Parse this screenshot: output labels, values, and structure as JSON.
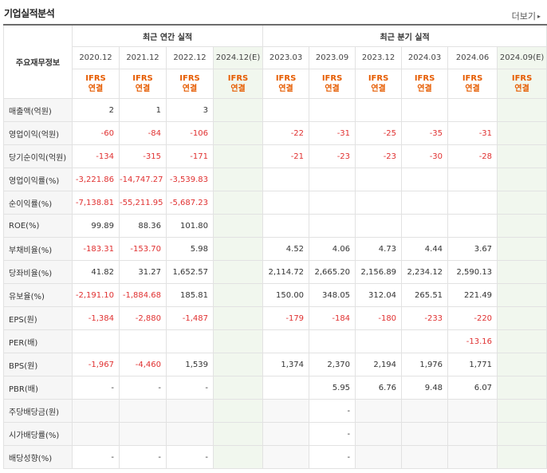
{
  "section_title": "기업실적분석",
  "more_label": "더보기",
  "header": {
    "corner_label": "주요재무정보",
    "annual_group": "최근 연간 실적",
    "quarterly_group": "최근 분기 실적",
    "periods": [
      "2020.12",
      "2021.12",
      "2022.12",
      "2024.12(E)",
      "2023.03",
      "2023.09",
      "2023.12",
      "2024.03",
      "2024.06",
      "2024.09(E)"
    ],
    "ifrs_line1": "IFRS",
    "ifrs_line2": "연결"
  },
  "rows": [
    {
      "label": "매출액(억원)",
      "values": [
        "2",
        "1",
        "3",
        "",
        "",
        "",
        "",
        "",
        "",
        ""
      ]
    },
    {
      "label": "영업이익(억원)",
      "values": [
        "-60",
        "-84",
        "-106",
        "",
        "-22",
        "-31",
        "-25",
        "-35",
        "-31",
        ""
      ]
    },
    {
      "label": "당기순이익(억원)",
      "values": [
        "-134",
        "-315",
        "-171",
        "",
        "-21",
        "-23",
        "-23",
        "-30",
        "-28",
        ""
      ]
    },
    {
      "label": "영업이익률(%)",
      "values": [
        "-3,221.86",
        "-14,747.27",
        "-3,539.83",
        "",
        "",
        "",
        "",
        "",
        "",
        ""
      ]
    },
    {
      "label": "순이익률(%)",
      "values": [
        "-7,138.81",
        "-55,211.95",
        "-5,687.23",
        "",
        "",
        "",
        "",
        "",
        "",
        ""
      ]
    },
    {
      "label": "ROE(%)",
      "values": [
        "99.89",
        "88.36",
        "101.80",
        "",
        "",
        "",
        "",
        "",
        "",
        ""
      ]
    },
    {
      "label": "부채비율(%)",
      "values": [
        "-183.31",
        "-153.70",
        "5.98",
        "",
        "4.52",
        "4.06",
        "4.73",
        "4.44",
        "3.67",
        ""
      ]
    },
    {
      "label": "당좌비율(%)",
      "values": [
        "41.82",
        "31.27",
        "1,652.57",
        "",
        "2,114.72",
        "2,665.20",
        "2,156.89",
        "2,234.12",
        "2,590.13",
        ""
      ]
    },
    {
      "label": "유보율(%)",
      "values": [
        "-2,191.10",
        "-1,884.68",
        "185.81",
        "",
        "150.00",
        "348.05",
        "312.04",
        "265.51",
        "221.49",
        ""
      ]
    },
    {
      "label": "EPS(원)",
      "values": [
        "-1,384",
        "-2,880",
        "-1,487",
        "",
        "-179",
        "-184",
        "-180",
        "-233",
        "-220",
        ""
      ]
    },
    {
      "label": "PER(배)",
      "values": [
        "",
        "",
        "",
        "",
        "",
        "",
        "",
        "",
        "-13.16",
        ""
      ]
    },
    {
      "label": "BPS(원)",
      "values": [
        "-1,967",
        "-4,460",
        "1,539",
        "",
        "1,374",
        "2,370",
        "2,194",
        "1,976",
        "1,771",
        ""
      ]
    },
    {
      "label": "PBR(배)",
      "values": [
        "-",
        "-",
        "-",
        "",
        "",
        "5.95",
        "6.76",
        "9.48",
        "6.07",
        ""
      ]
    },
    {
      "label": "주당배당금(원)",
      "values": [
        "",
        "",
        "",
        "",
        "",
        "-",
        "",
        "",
        "",
        ""
      ]
    },
    {
      "label": "시가배당률(%)",
      "values": [
        "",
        "",
        "",
        "",
        "",
        "-",
        "",
        "",
        "",
        ""
      ]
    },
    {
      "label": "배당성향(%)",
      "values": [
        "-",
        "-",
        "-",
        "",
        "",
        "-",
        "",
        "",
        "",
        ""
      ]
    }
  ],
  "colors": {
    "negative": "#e03030",
    "ifrs": "#e65c00",
    "estimate_bg": "#f1f7ee",
    "label_bg": "#f6f6f6"
  }
}
